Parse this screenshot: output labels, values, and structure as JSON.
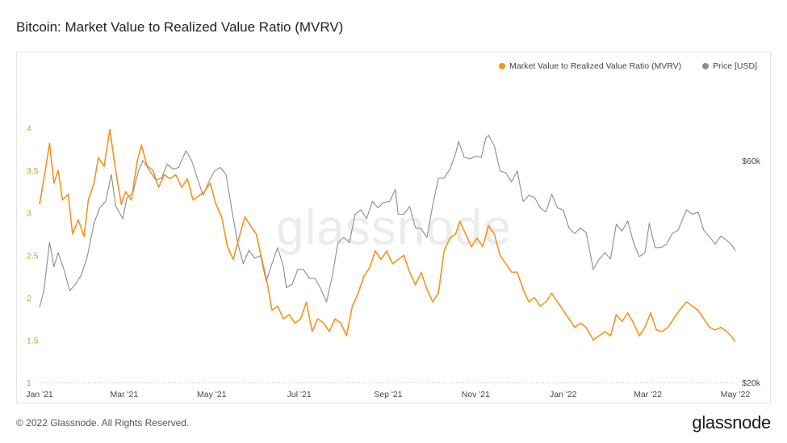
{
  "page": {
    "title": "Bitcoin: Market Value to Realized Value Ratio (MVRV)",
    "footer_copyright": "© 2022 Glassnode. All Rights Reserved.",
    "footer_logo": "glassnode",
    "watermark": "glassnode"
  },
  "colors": {
    "mvrv": "#f7931a",
    "price": "#8c8c8c",
    "left_axis_text": "#d89a2a",
    "axis_text": "#444444"
  },
  "chart_data": {
    "type": "line",
    "title": "Bitcoin: Market Value to Realized Value Ratio (MVRV)",
    "legend_position": "top-right",
    "grid": false,
    "x_range": [
      "2021-01-01",
      "2022-05-01"
    ],
    "x_ticks": [
      {
        "date": "2021-01-01",
        "label": "Jan '21"
      },
      {
        "date": "2021-03-01",
        "label": "Mar '21"
      },
      {
        "date": "2021-05-01",
        "label": "May '21"
      },
      {
        "date": "2021-07-01",
        "label": "Jul '21"
      },
      {
        "date": "2021-09-01",
        "label": "Sep '21"
      },
      {
        "date": "2021-11-01",
        "label": "Nov '21"
      },
      {
        "date": "2022-01-01",
        "label": "Jan '22"
      },
      {
        "date": "2022-03-01",
        "label": "Mar '22"
      },
      {
        "date": "2022-05-01",
        "label": "May '22"
      }
    ],
    "y_left": {
      "range": [
        1,
        4.3
      ],
      "ticks": [
        1,
        1.5,
        2,
        2.5,
        3,
        3.5,
        4
      ],
      "tick_labels": [
        "1",
        "1.5",
        "2",
        "2.5",
        "3",
        "3.5",
        "4"
      ]
    },
    "y_right": {
      "scale": "log",
      "range": [
        20000,
        80000
      ],
      "ticks": [
        20000,
        60000
      ],
      "tick_labels": [
        "$20k",
        "$60k"
      ]
    },
    "series": [
      {
        "name": "Market Value to Realized Value Ratio (MVRV)",
        "axis": "left",
        "points": [
          [
            "2021-01-01",
            3.1
          ],
          [
            "2021-01-05",
            3.5
          ],
          [
            "2021-01-08",
            3.82
          ],
          [
            "2021-01-11",
            3.35
          ],
          [
            "2021-01-14",
            3.5
          ],
          [
            "2021-01-17",
            3.15
          ],
          [
            "2021-01-21",
            3.22
          ],
          [
            "2021-01-24",
            2.75
          ],
          [
            "2021-01-28",
            2.92
          ],
          [
            "2021-02-01",
            2.72
          ],
          [
            "2021-02-04",
            3.15
          ],
          [
            "2021-02-08",
            3.35
          ],
          [
            "2021-02-11",
            3.65
          ],
          [
            "2021-02-15",
            3.55
          ],
          [
            "2021-02-19",
            3.98
          ],
          [
            "2021-02-23",
            3.5
          ],
          [
            "2021-02-27",
            3.1
          ],
          [
            "2021-03-02",
            3.25
          ],
          [
            "2021-03-06",
            3.15
          ],
          [
            "2021-03-10",
            3.6
          ],
          [
            "2021-03-13",
            3.8
          ],
          [
            "2021-03-17",
            3.55
          ],
          [
            "2021-03-21",
            3.5
          ],
          [
            "2021-03-25",
            3.3
          ],
          [
            "2021-03-29",
            3.45
          ],
          [
            "2021-04-02",
            3.4
          ],
          [
            "2021-04-06",
            3.45
          ],
          [
            "2021-04-10",
            3.3
          ],
          [
            "2021-04-14",
            3.4
          ],
          [
            "2021-04-18",
            3.15
          ],
          [
            "2021-04-22",
            3.2
          ],
          [
            "2021-04-26",
            3.25
          ],
          [
            "2021-04-30",
            3.35
          ],
          [
            "2021-05-04",
            3.1
          ],
          [
            "2021-05-08",
            2.95
          ],
          [
            "2021-05-12",
            2.6
          ],
          [
            "2021-05-16",
            2.45
          ],
          [
            "2021-05-20",
            2.7
          ],
          [
            "2021-05-24",
            2.95
          ],
          [
            "2021-05-28",
            2.85
          ],
          [
            "2021-06-01",
            2.75
          ],
          [
            "2021-06-05",
            2.45
          ],
          [
            "2021-06-09",
            2.15
          ],
          [
            "2021-06-12",
            1.85
          ],
          [
            "2021-06-16",
            1.9
          ],
          [
            "2021-06-20",
            1.75
          ],
          [
            "2021-06-24",
            1.8
          ],
          [
            "2021-06-28",
            1.7
          ],
          [
            "2021-07-02",
            1.75
          ],
          [
            "2021-07-06",
            1.95
          ],
          [
            "2021-07-10",
            1.6
          ],
          [
            "2021-07-14",
            1.75
          ],
          [
            "2021-07-18",
            1.7
          ],
          [
            "2021-07-22",
            1.6
          ],
          [
            "2021-07-26",
            1.75
          ],
          [
            "2021-07-30",
            1.7
          ],
          [
            "2021-08-03",
            1.55
          ],
          [
            "2021-08-07",
            1.9
          ],
          [
            "2021-08-11",
            2.05
          ],
          [
            "2021-08-15",
            2.25
          ],
          [
            "2021-08-19",
            2.35
          ],
          [
            "2021-08-23",
            2.55
          ],
          [
            "2021-08-27",
            2.45
          ],
          [
            "2021-08-31",
            2.55
          ],
          [
            "2021-09-04",
            2.4
          ],
          [
            "2021-09-08",
            2.45
          ],
          [
            "2021-09-12",
            2.5
          ],
          [
            "2021-09-16",
            2.3
          ],
          [
            "2021-09-20",
            2.15
          ],
          [
            "2021-09-24",
            2.3
          ],
          [
            "2021-09-28",
            2.1
          ],
          [
            "2021-10-02",
            1.95
          ],
          [
            "2021-10-06",
            2.05
          ],
          [
            "2021-10-10",
            2.55
          ],
          [
            "2021-10-14",
            2.7
          ],
          [
            "2021-10-18",
            2.75
          ],
          [
            "2021-10-21",
            2.9
          ],
          [
            "2021-10-25",
            2.75
          ],
          [
            "2021-10-29",
            2.6
          ],
          [
            "2021-11-02",
            2.7
          ],
          [
            "2021-11-06",
            2.6
          ],
          [
            "2021-11-10",
            2.85
          ],
          [
            "2021-11-14",
            2.75
          ],
          [
            "2021-11-18",
            2.5
          ],
          [
            "2021-11-22",
            2.4
          ],
          [
            "2021-11-26",
            2.3
          ],
          [
            "2021-11-30",
            2.3
          ],
          [
            "2021-12-04",
            2.1
          ],
          [
            "2021-12-08",
            1.95
          ],
          [
            "2021-12-12",
            2.0
          ],
          [
            "2021-12-16",
            1.9
          ],
          [
            "2021-12-20",
            1.95
          ],
          [
            "2021-12-24",
            2.05
          ],
          [
            "2021-12-28",
            1.95
          ],
          [
            "2022-01-01",
            1.85
          ],
          [
            "2022-01-05",
            1.75
          ],
          [
            "2022-01-09",
            1.65
          ],
          [
            "2022-01-13",
            1.7
          ],
          [
            "2022-01-17",
            1.65
          ],
          [
            "2022-01-22",
            1.5
          ],
          [
            "2022-01-26",
            1.55
          ],
          [
            "2022-01-30",
            1.6
          ],
          [
            "2022-02-03",
            1.55
          ],
          [
            "2022-02-07",
            1.8
          ],
          [
            "2022-02-11",
            1.72
          ],
          [
            "2022-02-15",
            1.82
          ],
          [
            "2022-02-19",
            1.7
          ],
          [
            "2022-02-23",
            1.55
          ],
          [
            "2022-02-27",
            1.65
          ],
          [
            "2022-03-03",
            1.82
          ],
          [
            "2022-03-07",
            1.62
          ],
          [
            "2022-03-11",
            1.6
          ],
          [
            "2022-03-15",
            1.65
          ],
          [
            "2022-03-19",
            1.75
          ],
          [
            "2022-03-23",
            1.85
          ],
          [
            "2022-03-28",
            1.95
          ],
          [
            "2022-04-01",
            1.9
          ],
          [
            "2022-04-05",
            1.85
          ],
          [
            "2022-04-09",
            1.75
          ],
          [
            "2022-04-13",
            1.65
          ],
          [
            "2022-04-17",
            1.62
          ],
          [
            "2022-04-21",
            1.65
          ],
          [
            "2022-04-25",
            1.6
          ],
          [
            "2022-04-28",
            1.55
          ],
          [
            "2022-05-01",
            1.48
          ]
        ]
      },
      {
        "name": "Price [USD]",
        "axis": "right",
        "points": [
          [
            "2021-01-01",
            29000
          ],
          [
            "2021-01-04",
            31500
          ],
          [
            "2021-01-08",
            40000
          ],
          [
            "2021-01-11",
            35500
          ],
          [
            "2021-01-14",
            38000
          ],
          [
            "2021-01-18",
            35000
          ],
          [
            "2021-01-22",
            31500
          ],
          [
            "2021-01-26",
            32500
          ],
          [
            "2021-01-30",
            34000
          ],
          [
            "2021-02-03",
            37000
          ],
          [
            "2021-02-08",
            44000
          ],
          [
            "2021-02-12",
            47500
          ],
          [
            "2021-02-16",
            49000
          ],
          [
            "2021-02-20",
            56000
          ],
          [
            "2021-02-23",
            48000
          ],
          [
            "2021-02-28",
            45000
          ],
          [
            "2021-03-03",
            50000
          ],
          [
            "2021-03-07",
            51000
          ],
          [
            "2021-03-11",
            57000
          ],
          [
            "2021-03-14",
            60000
          ],
          [
            "2021-03-18",
            57500
          ],
          [
            "2021-03-23",
            54500
          ],
          [
            "2021-03-27",
            55000
          ],
          [
            "2021-03-31",
            59000
          ],
          [
            "2021-04-04",
            57500
          ],
          [
            "2021-04-08",
            58000
          ],
          [
            "2021-04-13",
            63000
          ],
          [
            "2021-04-17",
            60000
          ],
          [
            "2021-04-21",
            55000
          ],
          [
            "2021-04-25",
            50500
          ],
          [
            "2021-04-29",
            54000
          ],
          [
            "2021-05-03",
            57000
          ],
          [
            "2021-05-07",
            58000
          ],
          [
            "2021-05-11",
            56000
          ],
          [
            "2021-05-15",
            47000
          ],
          [
            "2021-05-19",
            40000
          ],
          [
            "2021-05-23",
            36000
          ],
          [
            "2021-05-27",
            38500
          ],
          [
            "2021-05-31",
            37000
          ],
          [
            "2021-06-04",
            37500
          ],
          [
            "2021-06-08",
            33000
          ],
          [
            "2021-06-12",
            36000
          ],
          [
            "2021-06-16",
            39000
          ],
          [
            "2021-06-20",
            35500
          ],
          [
            "2021-06-22",
            32000
          ],
          [
            "2021-06-26",
            32500
          ],
          [
            "2021-06-30",
            35000
          ],
          [
            "2021-07-04",
            35000
          ],
          [
            "2021-07-08",
            33500
          ],
          [
            "2021-07-12",
            33500
          ],
          [
            "2021-07-16",
            31800
          ],
          [
            "2021-07-20",
            29800
          ],
          [
            "2021-07-24",
            33800
          ],
          [
            "2021-07-28",
            40000
          ],
          [
            "2021-08-01",
            41000
          ],
          [
            "2021-08-05",
            40000
          ],
          [
            "2021-08-09",
            46000
          ],
          [
            "2021-08-13",
            47000
          ],
          [
            "2021-08-17",
            45000
          ],
          [
            "2021-08-21",
            49000
          ],
          [
            "2021-08-25",
            47500
          ],
          [
            "2021-08-29",
            48800
          ],
          [
            "2021-09-02",
            49000
          ],
          [
            "2021-09-06",
            52000
          ],
          [
            "2021-09-08",
            46000
          ],
          [
            "2021-09-12",
            46000
          ],
          [
            "2021-09-16",
            47800
          ],
          [
            "2021-09-20",
            43000
          ],
          [
            "2021-09-24",
            42800
          ],
          [
            "2021-09-28",
            41000
          ],
          [
            "2021-10-02",
            48000
          ],
          [
            "2021-10-06",
            55000
          ],
          [
            "2021-10-10",
            55000
          ],
          [
            "2021-10-14",
            57500
          ],
          [
            "2021-10-18",
            62000
          ],
          [
            "2021-10-20",
            66000
          ],
          [
            "2021-10-24",
            61000
          ],
          [
            "2021-10-28",
            60500
          ],
          [
            "2021-11-01",
            61300
          ],
          [
            "2021-11-05",
            61000
          ],
          [
            "2021-11-08",
            67000
          ],
          [
            "2021-11-10",
            68000
          ],
          [
            "2021-11-14",
            64500
          ],
          [
            "2021-11-18",
            57000
          ],
          [
            "2021-11-22",
            56500
          ],
          [
            "2021-11-26",
            54000
          ],
          [
            "2021-11-30",
            57000
          ],
          [
            "2021-12-04",
            49000
          ],
          [
            "2021-12-08",
            50500
          ],
          [
            "2021-12-12",
            50000
          ],
          [
            "2021-12-16",
            47500
          ],
          [
            "2021-12-20",
            46500
          ],
          [
            "2021-12-24",
            50800
          ],
          [
            "2021-12-28",
            47500
          ],
          [
            "2022-01-01",
            47000
          ],
          [
            "2022-01-05",
            43000
          ],
          [
            "2022-01-09",
            41800
          ],
          [
            "2022-01-13",
            43000
          ],
          [
            "2022-01-17",
            42000
          ],
          [
            "2022-01-22",
            35000
          ],
          [
            "2022-01-26",
            36800
          ],
          [
            "2022-01-30",
            38000
          ],
          [
            "2022-02-03",
            36900
          ],
          [
            "2022-02-07",
            43800
          ],
          [
            "2022-02-11",
            42300
          ],
          [
            "2022-02-15",
            44500
          ],
          [
            "2022-02-19",
            40000
          ],
          [
            "2022-02-23",
            37300
          ],
          [
            "2022-02-27",
            38000
          ],
          [
            "2022-03-02",
            44000
          ],
          [
            "2022-03-06",
            39000
          ],
          [
            "2022-03-10",
            39000
          ],
          [
            "2022-03-14",
            39600
          ],
          [
            "2022-03-18",
            41800
          ],
          [
            "2022-03-22",
            42500
          ],
          [
            "2022-03-28",
            47000
          ],
          [
            "2022-04-01",
            46000
          ],
          [
            "2022-04-05",
            46500
          ],
          [
            "2022-04-09",
            42500
          ],
          [
            "2022-04-13",
            41100
          ],
          [
            "2022-04-17",
            39700
          ],
          [
            "2022-04-21",
            41300
          ],
          [
            "2022-04-25",
            40400
          ],
          [
            "2022-04-28",
            39700
          ],
          [
            "2022-05-01",
            38400
          ]
        ]
      }
    ]
  }
}
